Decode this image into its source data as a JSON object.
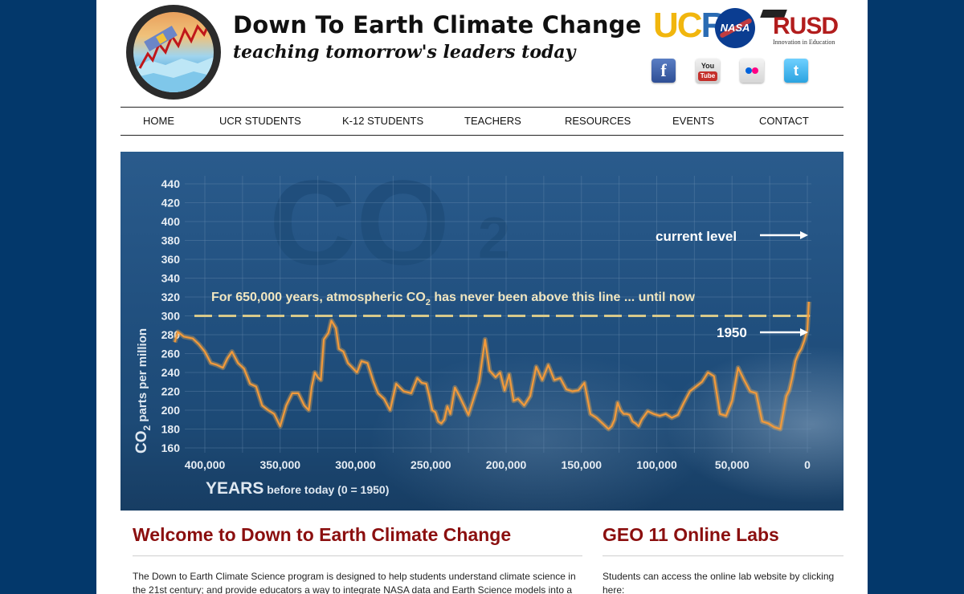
{
  "header": {
    "site_title": "Down To Earth Climate Change",
    "tagline": "teaching tomorrow's leaders today",
    "partners": {
      "ucr_u": "UC",
      "ucr_r": "R",
      "nasa": "NASA",
      "rusd": "RUSD",
      "rusd_sub": "Innovation in Education"
    },
    "social": {
      "facebook": "f",
      "youtube_top": "You",
      "youtube_bottom": "Tube",
      "twitter": "t"
    }
  },
  "nav": {
    "items": [
      "HOME",
      "UCR STUDENTS",
      "K-12 STUDENTS",
      "TEACHERS",
      "RESOURCES",
      "EVENTS",
      "CONTACT"
    ]
  },
  "hero": {
    "ghost_text": "CO",
    "ghost_sub": "2",
    "annotation_main": "For 650,000 years, atmospheric CO",
    "annotation_sub": "2",
    "annotation_tail": " has never been above this line ... until now",
    "label_current": "current level",
    "label_1950": "1950",
    "colors": {
      "curve": "#f39a3a",
      "threshold": "#d8c98a",
      "text": "#f0e6c0"
    },
    "chart_data": {
      "type": "line",
      "ylabel_main": "CO",
      "ylabel_sub": "2",
      "ylabel_tail": " parts per million",
      "xlabel_main": "YEARS",
      "xlabel_tail": " before today (0 = 1950)",
      "ylim": [
        160,
        440
      ],
      "yticks": [
        160,
        180,
        200,
        220,
        240,
        260,
        280,
        300,
        320,
        340,
        360,
        380,
        400,
        420,
        440
      ],
      "xlim": [
        420000,
        0
      ],
      "xticks": [
        400000,
        350000,
        300000,
        250000,
        200000,
        150000,
        100000,
        50000,
        0
      ],
      "xtick_labels": [
        "400,000",
        "350,000",
        "300,000",
        "250,000",
        "200,000",
        "150,000",
        "100,000",
        "50,000",
        "0"
      ],
      "threshold": 300,
      "series": [
        {
          "x": [
            420000,
            418000,
            414000,
            408000,
            404000,
            400000,
            396000,
            392000,
            388000,
            385000,
            382000,
            378000,
            374000,
            370000,
            366000,
            362000,
            358000,
            354000,
            350000,
            346000,
            342000,
            338000,
            334000,
            331000,
            329000,
            327000,
            325000,
            323000,
            321000,
            318000,
            316000,
            313000,
            311000,
            308000,
            305000,
            302000,
            299000,
            296000,
            292000,
            288000,
            285000,
            281000,
            277000,
            273000,
            268000,
            263000,
            259000,
            256000,
            253000,
            251000,
            249000,
            247000,
            245000,
            243000,
            241000,
            239000,
            237000,
            234000,
            231000,
            228000,
            225000,
            221000,
            218000,
            214000,
            211000,
            207000,
            204000,
            201000,
            198000,
            195000,
            192000,
            188000,
            184000,
            180000,
            176000,
            172000,
            168000,
            164000,
            160000,
            156000,
            152000,
            148000,
            144000,
            140000,
            136000,
            132000,
            130000,
            128000,
            126000,
            124000,
            122000,
            120000,
            118000,
            116000,
            114000,
            112000,
            110000,
            106000,
            102000,
            98000,
            94000,
            90000,
            86000,
            82000,
            78000,
            74000,
            70000,
            66000,
            62000,
            58000,
            54000,
            50000,
            46000,
            42000,
            38000,
            34000,
            30000,
            26000,
            22000,
            18000,
            14000,
            12000,
            10000,
            8000,
            6000,
            4000,
            2000,
            0,
            -1000
          ],
          "y": [
            272,
            283,
            278,
            276,
            270,
            262,
            250,
            248,
            245,
            255,
            262,
            250,
            244,
            228,
            225,
            205,
            200,
            196,
            183,
            205,
            218,
            218,
            205,
            200,
            225,
            240,
            235,
            232,
            275,
            282,
            295,
            287,
            265,
            262,
            250,
            245,
            240,
            252,
            250,
            230,
            218,
            212,
            200,
            228,
            220,
            218,
            234,
            229,
            228,
            215,
            200,
            198,
            188,
            186,
            190,
            204,
            196,
            224,
            215,
            205,
            195,
            215,
            230,
            275,
            242,
            235,
            240,
            221,
            238,
            210,
            212,
            205,
            215,
            246,
            232,
            248,
            232,
            234,
            222,
            220,
            221,
            229,
            196,
            192,
            186,
            180,
            183,
            190,
            208,
            200,
            196,
            196,
            195,
            188,
            186,
            183,
            190,
            199,
            196,
            194,
            196,
            192,
            195,
            208,
            220,
            225,
            230,
            240,
            236,
            196,
            194,
            210,
            245,
            232,
            220,
            218,
            188,
            186,
            182,
            180,
            215,
            221,
            235,
            252,
            260,
            265,
            274,
            285,
            315
          ]
        }
      ],
      "annotations": [
        {
          "label": "current level",
          "year": 0,
          "ppm": 385
        },
        {
          "label": "1950",
          "year": 0,
          "ppm": 280
        }
      ],
      "grid": true
    }
  },
  "main": {
    "welcome_title": "Welcome to Down to Earth Climate Change",
    "welcome_text": "The Down to Earth Climate Science program is designed to help students understand climate science in the 21st century; and provide educators a way to integrate NASA data and Earth Science models into a",
    "labs_title": "GEO 11 Online Labs",
    "labs_text": "Students can access the online lab website by clicking here:"
  }
}
